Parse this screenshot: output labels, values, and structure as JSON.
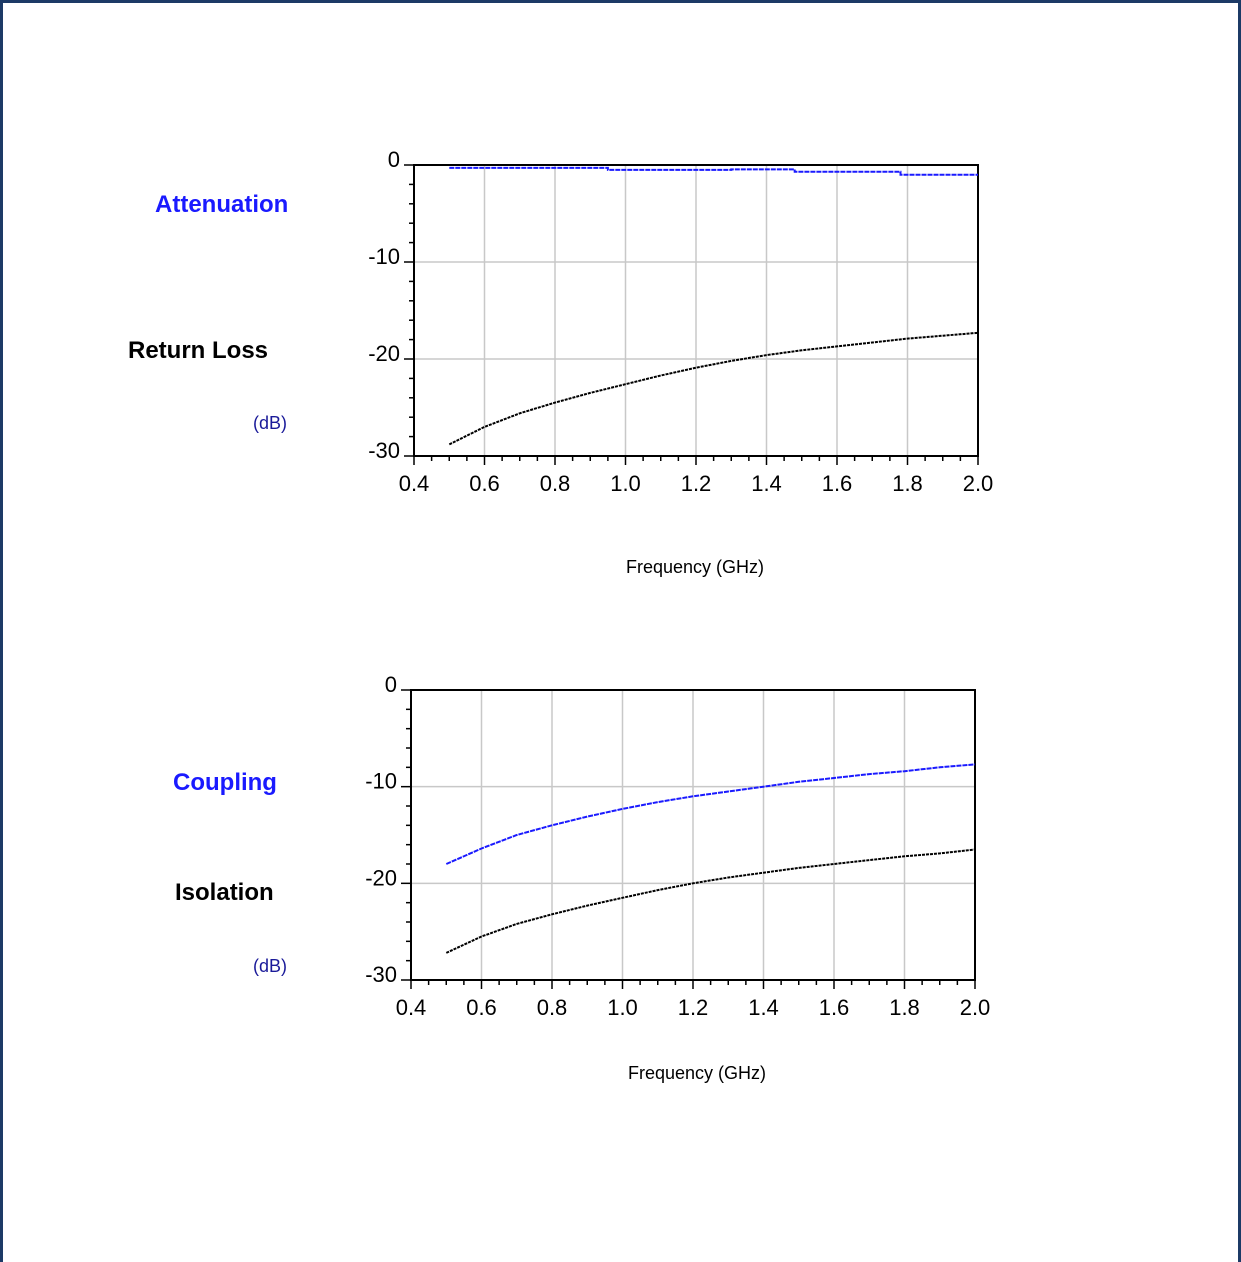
{
  "colors": {
    "frame": "#1c3a66",
    "blue_series": "#1a1aff",
    "black_series": "#000000",
    "grid": "#c8c8c8",
    "unit": "#1a1a99"
  },
  "chart_data": [
    {
      "type": "line",
      "title": "",
      "labels": {
        "series_a": "Attenuation",
        "series_b": "Return Loss",
        "unit": "(dB)"
      },
      "xlabel": "Frequency (GHz)",
      "ylabel": "",
      "xlim": [
        0.4,
        2.0
      ],
      "ylim": [
        -30,
        0
      ],
      "xticks": [
        "0.4",
        "0.6",
        "0.8",
        "1.0",
        "1.2",
        "1.4",
        "1.6",
        "1.8",
        "2.0"
      ],
      "yticks": [
        "0",
        "-10",
        "-20",
        "-30"
      ],
      "grid": true,
      "series": [
        {
          "name": "Attenuation",
          "color": "#1a1aff",
          "x": [
            0.5,
            0.95,
            0.95,
            1.3,
            1.3,
            1.48,
            1.48,
            1.78,
            1.78,
            2.0
          ],
          "y": [
            -0.3,
            -0.3,
            -0.5,
            -0.5,
            -0.45,
            -0.45,
            -0.7,
            -0.7,
            -1.0,
            -1.0
          ]
        },
        {
          "name": "Return Loss",
          "color": "#000000",
          "x": [
            0.5,
            0.6,
            0.7,
            0.8,
            0.9,
            1.0,
            1.1,
            1.2,
            1.3,
            1.4,
            1.5,
            1.6,
            1.7,
            1.8,
            1.9,
            2.0
          ],
          "y": [
            -28.8,
            -27.0,
            -25.6,
            -24.5,
            -23.5,
            -22.6,
            -21.7,
            -20.9,
            -20.2,
            -19.6,
            -19.1,
            -18.7,
            -18.3,
            -17.9,
            -17.6,
            -17.3
          ]
        }
      ]
    },
    {
      "type": "line",
      "title": "",
      "labels": {
        "series_a": "Coupling",
        "series_b": "Isolation",
        "unit": "(dB)"
      },
      "xlabel": "Frequency (GHz)",
      "ylabel": "",
      "xlim": [
        0.4,
        2.0
      ],
      "ylim": [
        -30,
        0
      ],
      "xticks": [
        "0.4",
        "0.6",
        "0.8",
        "1.0",
        "1.2",
        "1.4",
        "1.6",
        "1.8",
        "2.0"
      ],
      "yticks": [
        "0",
        "-10",
        "-20",
        "-30"
      ],
      "grid": true,
      "series": [
        {
          "name": "Coupling",
          "color": "#1a1aff",
          "x": [
            0.5,
            0.6,
            0.7,
            0.8,
            0.9,
            1.0,
            1.1,
            1.2,
            1.3,
            1.4,
            1.5,
            1.6,
            1.7,
            1.8,
            1.9,
            2.0
          ],
          "y": [
            -18.0,
            -16.4,
            -15.0,
            -14.0,
            -13.1,
            -12.3,
            -11.6,
            -11.0,
            -10.5,
            -10.0,
            -9.5,
            -9.1,
            -8.7,
            -8.4,
            -8.0,
            -7.7
          ]
        },
        {
          "name": "Isolation",
          "color": "#000000",
          "x": [
            0.5,
            0.6,
            0.7,
            0.8,
            0.9,
            1.0,
            1.1,
            1.2,
            1.3,
            1.4,
            1.5,
            1.6,
            1.7,
            1.8,
            1.9,
            2.0
          ],
          "y": [
            -27.2,
            -25.5,
            -24.2,
            -23.2,
            -22.3,
            -21.5,
            -20.7,
            -20.0,
            -19.4,
            -18.9,
            -18.4,
            -18.0,
            -17.6,
            -17.2,
            -16.9,
            -16.5
          ]
        }
      ]
    }
  ]
}
